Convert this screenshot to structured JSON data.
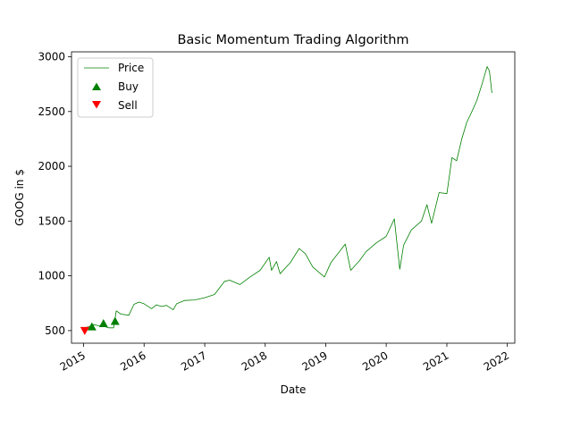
{
  "chart_data": {
    "type": "line",
    "title": "Basic Momentum Trading Algorithm",
    "xlabel": "Date",
    "ylabel": "GOOG in $",
    "xlim": [
      "2014-10-20",
      "2022-02-15"
    ],
    "ylim": [
      385,
      3045
    ],
    "x_ticks": [
      "2015",
      "2016",
      "2017",
      "2018",
      "2019",
      "2020",
      "2021",
      "2022"
    ],
    "y_ticks": [
      500,
      1000,
      1500,
      2000,
      2500,
      3000
    ],
    "grid": false,
    "legend_position": "upper-left",
    "colors": {
      "price": "#008000",
      "buy": "#008000",
      "sell": "#ff0000"
    },
    "series": [
      {
        "name": "Price",
        "marker": "line",
        "x": [
          "2015-01-02",
          "2015-02-01",
          "2015-03-01",
          "2015-04-01",
          "2015-05-01",
          "2015-06-01",
          "2015-07-01",
          "2015-07-17",
          "2015-08-15",
          "2015-10-01",
          "2015-11-01",
          "2015-12-01",
          "2016-01-01",
          "2016-02-15",
          "2016-03-15",
          "2016-04-15",
          "2016-05-15",
          "2016-06-25",
          "2016-07-15",
          "2016-09-01",
          "2016-11-01",
          "2017-01-01",
          "2017-03-01",
          "2017-05-01",
          "2017-06-01",
          "2017-08-01",
          "2017-10-01",
          "2017-12-01",
          "2018-01-25",
          "2018-02-08",
          "2018-03-10",
          "2018-04-01",
          "2018-06-01",
          "2018-07-25",
          "2018-09-01",
          "2018-10-15",
          "2018-12-24",
          "2019-02-01",
          "2019-04-29",
          "2019-06-01",
          "2019-07-25",
          "2019-09-01",
          "2019-11-01",
          "2020-01-01",
          "2020-02-19",
          "2020-03-23",
          "2020-04-15",
          "2020-06-01",
          "2020-08-01",
          "2020-09-03",
          "2020-10-01",
          "2020-11-15",
          "2021-01-01",
          "2021-02-01",
          "2021-03-01",
          "2021-04-01",
          "2021-05-01",
          "2021-06-01",
          "2021-07-01",
          "2021-08-01",
          "2021-09-01",
          "2021-09-15",
          "2021-09-30"
        ],
        "y": [
          525,
          535,
          555,
          545,
          540,
          525,
          525,
          680,
          650,
          640,
          740,
          760,
          745,
          700,
          735,
          720,
          730,
          690,
          745,
          775,
          780,
          800,
          830,
          950,
          960,
          920,
          990,
          1050,
          1170,
          1050,
          1130,
          1020,
          1120,
          1250,
          1200,
          1080,
          990,
          1120,
          1290,
          1050,
          1140,
          1220,
          1300,
          1360,
          1520,
          1060,
          1280,
          1420,
          1500,
          1650,
          1480,
          1760,
          1750,
          2080,
          2050,
          2250,
          2400,
          2500,
          2600,
          2750,
          2910,
          2870,
          2670
        ]
      },
      {
        "name": "Buy",
        "marker": "^",
        "x": [
          "2015-02-20",
          "2015-05-01",
          "2015-07-10"
        ],
        "y": [
          535,
          565,
          585
        ]
      },
      {
        "name": "Sell",
        "marker": "v",
        "x": [
          "2015-01-08"
        ],
        "y": [
          500
        ]
      }
    ]
  }
}
